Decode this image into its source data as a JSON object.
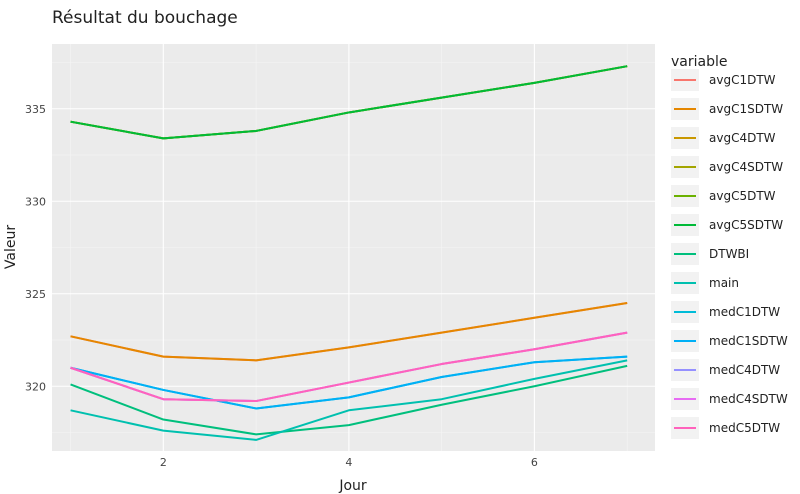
{
  "chart_data": {
    "type": "line",
    "title": "Résultat du bouchage",
    "xlabel": "Jour",
    "ylabel": "Valeur",
    "xlim": [
      0.8,
      7.3
    ],
    "ylim": [
      316.5,
      338.5
    ],
    "x_ticks": [
      2,
      4,
      6
    ],
    "y_ticks": [
      320,
      325,
      330,
      335
    ],
    "grid": true,
    "legend_title": "variable",
    "legend_position": "right",
    "x": [
      1,
      2,
      3,
      4,
      5,
      6,
      7
    ],
    "series": [
      {
        "name": "avgC1DTW",
        "color": "#F8766D",
        "values": [
          322.7,
          321.6,
          321.4,
          322.1,
          322.9,
          323.7,
          324.5
        ]
      },
      {
        "name": "avgC1SDTW",
        "color": "#E58700",
        "values": [
          322.7,
          321.6,
          321.4,
          322.1,
          322.9,
          323.7,
          324.5
        ]
      },
      {
        "name": "avgC4DTW",
        "color": "#C99800",
        "values": [
          334.3,
          333.4,
          333.8,
          334.8,
          335.6,
          336.4,
          337.3
        ]
      },
      {
        "name": "avgC4SDTW",
        "color": "#A3A500",
        "values": [
          334.3,
          333.4,
          333.8,
          334.8,
          335.6,
          336.4,
          337.3
        ]
      },
      {
        "name": "avgC5DTW",
        "color": "#6BB100",
        "values": [
          334.3,
          333.4,
          333.8,
          334.8,
          335.6,
          336.4,
          337.3
        ]
      },
      {
        "name": "avgC5SDTW",
        "color": "#00BA38",
        "values": [
          334.3,
          333.4,
          333.8,
          334.8,
          335.6,
          336.4,
          337.3
        ]
      },
      {
        "name": "DTWBI",
        "color": "#00BF7D",
        "values": [
          320.1,
          318.2,
          317.4,
          317.9,
          319.0,
          320.0,
          321.1
        ]
      },
      {
        "name": "main",
        "color": "#00C0AF",
        "values": [
          318.7,
          317.6,
          317.1,
          318.7,
          319.3,
          320.4,
          321.4
        ]
      },
      {
        "name": "medC1DTW",
        "color": "#00BCD8",
        "values": [
          321.0,
          319.8,
          318.8,
          319.4,
          320.5,
          321.3,
          321.6
        ]
      },
      {
        "name": "medC1SDTW",
        "color": "#00B0F6",
        "values": [
          321.0,
          319.8,
          318.8,
          319.4,
          320.5,
          321.3,
          321.6
        ]
      },
      {
        "name": "medC4DTW",
        "color": "#9590FF",
        "values": [
          321.0,
          319.3,
          319.2,
          320.2,
          321.2,
          322.0,
          322.9
        ]
      },
      {
        "name": "medC4SDTW",
        "color": "#E76BF3",
        "values": [
          321.0,
          319.3,
          319.2,
          320.2,
          321.2,
          322.0,
          322.9
        ]
      },
      {
        "name": "medC5DTW",
        "color": "#FF62BC",
        "values": [
          321.0,
          319.3,
          319.2,
          320.2,
          321.2,
          322.0,
          322.9
        ]
      }
    ]
  }
}
